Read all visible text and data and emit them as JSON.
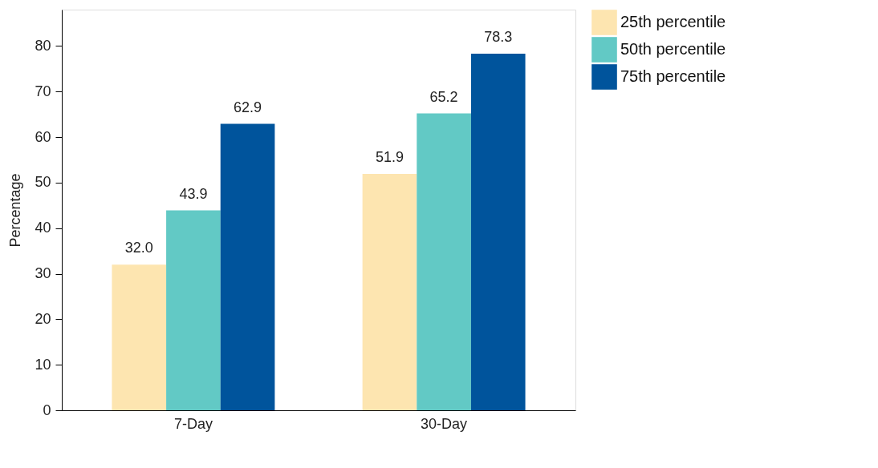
{
  "chart_data": {
    "type": "bar",
    "ylabel": "Percentage",
    "categories": [
      "7-Day",
      "30-Day"
    ],
    "series": [
      {
        "name": "25th percentile",
        "color": "#fde5b0",
        "values": [
          32.0,
          51.9
        ],
        "value_labels": [
          "32.0",
          "51.9"
        ]
      },
      {
        "name": "50th percentile",
        "color": "#62c9c5",
        "values": [
          43.9,
          65.2
        ],
        "value_labels": [
          "43.9",
          "65.2"
        ]
      },
      {
        "name": "75th percentile",
        "color": "#00549c",
        "values": [
          62.9,
          78.3
        ],
        "value_labels": [
          "62.9",
          "78.3"
        ]
      }
    ],
    "ylim": [
      0,
      88
    ],
    "yticks": [
      0,
      10,
      20,
      30,
      40,
      50,
      60,
      70,
      80
    ],
    "grid": false,
    "legend": "right"
  }
}
